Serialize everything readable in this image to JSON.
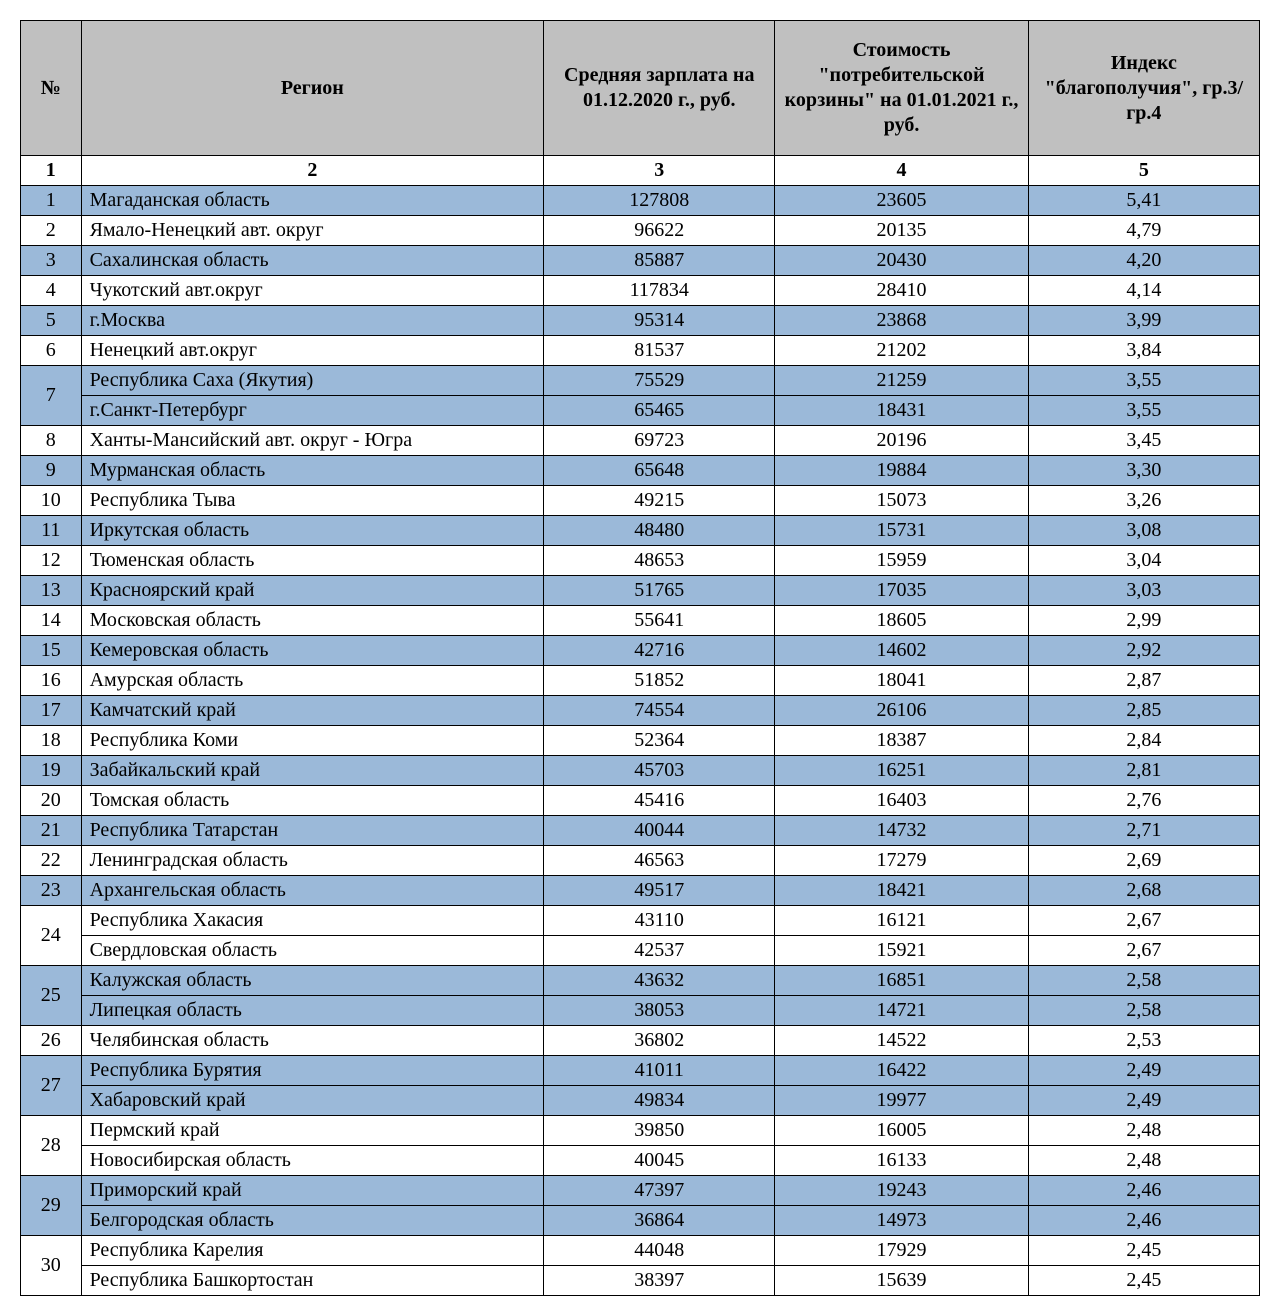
{
  "table": {
    "colors": {
      "header_bg": "#c0c0c0",
      "row_blue": "#9bb9d9",
      "row_white": "#ffffff",
      "border": "#000000",
      "text": "#000000"
    },
    "font": {
      "family": "Times New Roman",
      "size_pt": 15
    },
    "headers": {
      "num": "№",
      "region": "Регион",
      "salary": "Средняя зарплата на 01.12.2020 г., руб.",
      "basket": "Стоимость \"потребительской корзины\" на 01.01.2021 г., руб.",
      "index": "Индекс \"благополучия\", гр.3/гр.4"
    },
    "column_numbers": {
      "num": "1",
      "region": "2",
      "salary": "3",
      "basket": "4",
      "index": "5"
    },
    "groups": [
      {
        "rank": "1",
        "shade": "blue",
        "rows": [
          {
            "region": "Магаданская область",
            "salary": "127808",
            "basket": "23605",
            "index": "5,41"
          }
        ]
      },
      {
        "rank": "2",
        "shade": "white",
        "rows": [
          {
            "region": "Ямало-Ненецкий авт. округ",
            "salary": "96622",
            "basket": "20135",
            "index": "4,79"
          }
        ]
      },
      {
        "rank": "3",
        "shade": "blue",
        "rows": [
          {
            "region": "Сахалинская область",
            "salary": "85887",
            "basket": "20430",
            "index": "4,20"
          }
        ]
      },
      {
        "rank": "4",
        "shade": "white",
        "rows": [
          {
            "region": "Чукотский авт.округ",
            "salary": "117834",
            "basket": "28410",
            "index": "4,14"
          }
        ]
      },
      {
        "rank": "5",
        "shade": "blue",
        "rows": [
          {
            "region": "г.Москва",
            "salary": "95314",
            "basket": "23868",
            "index": "3,99"
          }
        ]
      },
      {
        "rank": "6",
        "shade": "white",
        "rows": [
          {
            "region": "Ненецкий авт.округ",
            "salary": "81537",
            "basket": "21202",
            "index": "3,84"
          }
        ]
      },
      {
        "rank": "7",
        "shade": "blue",
        "rows": [
          {
            "region": "Республика Саха (Якутия)",
            "salary": "75529",
            "basket": "21259",
            "index": "3,55"
          },
          {
            "region": "г.Санкт-Петербург",
            "salary": "65465",
            "basket": "18431",
            "index": "3,55"
          }
        ]
      },
      {
        "rank": "8",
        "shade": "white",
        "rows": [
          {
            "region": "Ханты-Мансийский авт. округ - Югра",
            "salary": "69723",
            "basket": "20196",
            "index": "3,45"
          }
        ]
      },
      {
        "rank": "9",
        "shade": "blue",
        "rows": [
          {
            "region": "Мурманская область",
            "salary": "65648",
            "basket": "19884",
            "index": "3,30"
          }
        ]
      },
      {
        "rank": "10",
        "shade": "white",
        "rows": [
          {
            "region": "Республика Тыва",
            "salary": "49215",
            "basket": "15073",
            "index": "3,26"
          }
        ]
      },
      {
        "rank": "11",
        "shade": "blue",
        "rows": [
          {
            "region": "Иркутская область",
            "salary": "48480",
            "basket": "15731",
            "index": "3,08"
          }
        ]
      },
      {
        "rank": "12",
        "shade": "white",
        "rows": [
          {
            "region": "Тюменская область",
            "salary": "48653",
            "basket": "15959",
            "index": "3,04"
          }
        ]
      },
      {
        "rank": "13",
        "shade": "blue",
        "rows": [
          {
            "region": "Красноярский край",
            "salary": "51765",
            "basket": "17035",
            "index": "3,03"
          }
        ]
      },
      {
        "rank": "14",
        "shade": "white",
        "rows": [
          {
            "region": "Московская область",
            "salary": "55641",
            "basket": "18605",
            "index": "2,99"
          }
        ]
      },
      {
        "rank": "15",
        "shade": "blue",
        "rows": [
          {
            "region": "Кемеровская область",
            "salary": "42716",
            "basket": "14602",
            "index": "2,92"
          }
        ]
      },
      {
        "rank": "16",
        "shade": "white",
        "rows": [
          {
            "region": "Амурская область",
            "salary": "51852",
            "basket": "18041",
            "index": "2,87"
          }
        ]
      },
      {
        "rank": "17",
        "shade": "blue",
        "rows": [
          {
            "region": "Камчатский край",
            "salary": "74554",
            "basket": "26106",
            "index": "2,85"
          }
        ]
      },
      {
        "rank": "18",
        "shade": "white",
        "rows": [
          {
            "region": "Республика Коми",
            "salary": "52364",
            "basket": "18387",
            "index": "2,84"
          }
        ]
      },
      {
        "rank": "19",
        "shade": "blue",
        "rows": [
          {
            "region": "Забайкальский край",
            "salary": "45703",
            "basket": "16251",
            "index": "2,81"
          }
        ]
      },
      {
        "rank": "20",
        "shade": "white",
        "rows": [
          {
            "region": "Томская область",
            "salary": "45416",
            "basket": "16403",
            "index": "2,76"
          }
        ]
      },
      {
        "rank": "21",
        "shade": "blue",
        "rows": [
          {
            "region": "Республика Татарстан",
            "salary": "40044",
            "basket": "14732",
            "index": "2,71"
          }
        ]
      },
      {
        "rank": "22",
        "shade": "white",
        "rows": [
          {
            "region": "Ленинградская область",
            "salary": "46563",
            "basket": "17279",
            "index": "2,69"
          }
        ]
      },
      {
        "rank": "23",
        "shade": "blue",
        "rows": [
          {
            "region": "Архангельская область",
            "salary": "49517",
            "basket": "18421",
            "index": "2,68"
          }
        ]
      },
      {
        "rank": "24",
        "shade": "white",
        "rows": [
          {
            "region": "Республика Хакасия",
            "salary": "43110",
            "basket": "16121",
            "index": "2,67"
          },
          {
            "region": "Свердловская область",
            "salary": "42537",
            "basket": "15921",
            "index": "2,67"
          }
        ]
      },
      {
        "rank": "25",
        "shade": "blue",
        "rows": [
          {
            "region": "Калужская область",
            "salary": "43632",
            "basket": "16851",
            "index": "2,58"
          },
          {
            "region": "Липецкая область",
            "salary": "38053",
            "basket": "14721",
            "index": "2,58"
          }
        ]
      },
      {
        "rank": "26",
        "shade": "white",
        "rows": [
          {
            "region": "Челябинская область",
            "salary": "36802",
            "basket": "14522",
            "index": "2,53"
          }
        ]
      },
      {
        "rank": "27",
        "shade": "blue",
        "rows": [
          {
            "region": "Республика Бурятия",
            "salary": "41011",
            "basket": "16422",
            "index": "2,49"
          },
          {
            "region": "Хабаровский край",
            "salary": "49834",
            "basket": "19977",
            "index": "2,49"
          }
        ]
      },
      {
        "rank": "28",
        "shade": "white",
        "rows": [
          {
            "region": "Пермский край",
            "salary": "39850",
            "basket": "16005",
            "index": "2,48"
          },
          {
            "region": "Новосибирская область",
            "salary": "40045",
            "basket": "16133",
            "index": "2,48"
          }
        ]
      },
      {
        "rank": "29",
        "shade": "blue",
        "rows": [
          {
            "region": "Приморский край",
            "salary": "47397",
            "basket": "19243",
            "index": "2,46"
          },
          {
            "region": "Белгородская область",
            "salary": "36864",
            "basket": "14973",
            "index": "2,46"
          }
        ]
      },
      {
        "rank": "30",
        "shade": "white",
        "rows": [
          {
            "region": "Республика Карелия",
            "salary": "44048",
            "basket": "17929",
            "index": "2,45"
          },
          {
            "region": "Республика Башкортостан",
            "salary": "38397",
            "basket": "15639",
            "index": "2,45"
          }
        ]
      }
    ]
  }
}
